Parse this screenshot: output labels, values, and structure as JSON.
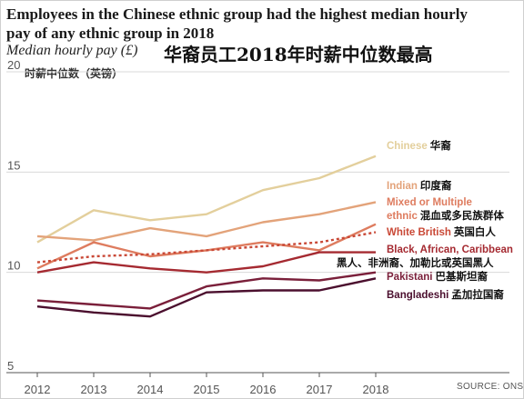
{
  "header": {
    "title_en": "Employees in the Chinese ethnic group had the highest median hourly pay of any ethnic group in 2018",
    "subtitle_en": "Median hourly pay (£)",
    "title_zh": "华裔员工2018年时薪中位数最高",
    "ylabel_zh": "时薪中位数（英镑）"
  },
  "footer": {
    "source": "SOURCE: ONS"
  },
  "chart_data": {
    "type": "line",
    "x": [
      2012,
      2013,
      2014,
      2015,
      2016,
      2017,
      2018
    ],
    "ylim": [
      5,
      20
    ],
    "yticks": [
      5,
      10,
      15,
      20
    ],
    "grid": "horizontal",
    "legend": "direct labels at right end of lines",
    "series": [
      {
        "name": "Chinese",
        "name_zh": "华裔",
        "color": "#e3cf9c",
        "style": "solid",
        "values": [
          11.5,
          13.1,
          12.6,
          12.9,
          14.1,
          14.7,
          15.8
        ]
      },
      {
        "name": "Indian",
        "name_zh": "印度裔",
        "color": "#e3a37a",
        "style": "solid",
        "values": [
          11.8,
          11.6,
          12.2,
          11.8,
          12.5,
          12.9,
          13.5
        ]
      },
      {
        "name": "Mixed or Multiple ethnic",
        "name_zh": "混血或多民族群体",
        "color": "#de7c5f",
        "style": "solid",
        "values": [
          10.2,
          11.5,
          10.8,
          11.1,
          11.5,
          11.1,
          12.4
        ]
      },
      {
        "name": "White British",
        "name_zh": "英国白人",
        "color": "#c94836",
        "style": "dotted",
        "values": [
          10.5,
          10.8,
          10.9,
          11.1,
          11.3,
          11.5,
          12.0
        ]
      },
      {
        "name": "Black, African, Caribbean or Black British",
        "name_zh": "黑人、非洲裔、加勒比或英国黑人",
        "color": "#a52a31",
        "style": "solid",
        "values": [
          10.0,
          10.5,
          10.2,
          10.0,
          10.3,
          11.0,
          11.0
        ]
      },
      {
        "name": "Pakistani",
        "name_zh": "巴基斯坦裔",
        "color": "#7a1f3a",
        "style": "solid",
        "values": [
          8.6,
          8.4,
          8.2,
          9.3,
          9.7,
          9.6,
          10.0
        ]
      },
      {
        "name": "Bangladeshi",
        "name_zh": "孟加拉国裔",
        "color": "#4b0f2e",
        "style": "solid",
        "values": [
          8.3,
          8.0,
          7.8,
          9.0,
          9.1,
          9.1,
          9.7
        ]
      }
    ],
    "labels": [
      {
        "text": "Chinese",
        "zh": "华裔",
        "color": "#e3cf9c"
      },
      {
        "text": "Indian",
        "zh": "印度裔",
        "color": "#e3a37a"
      },
      {
        "text": "Mixed or Multiple",
        "zh": "",
        "color": "#de7c5f"
      },
      {
        "text": "ethnic",
        "zh": "混血或多民族群体",
        "color": "#de7c5f"
      },
      {
        "text": "White British",
        "zh": "英国白人",
        "color": "#c94836"
      },
      {
        "text": "Black, African, Caribbean",
        "zh": "",
        "color": "#a52a31"
      },
      {
        "text": "",
        "zh": "黑人、非洲裔、加勒比或英国黑人",
        "color": "#a52a31"
      },
      {
        "text": "Pakistani",
        "zh": "巴基斯坦裔",
        "color": "#7a1f3a"
      },
      {
        "text": "Bangladeshi",
        "zh": "孟加拉国裔",
        "color": "#4b0f2e"
      }
    ]
  }
}
